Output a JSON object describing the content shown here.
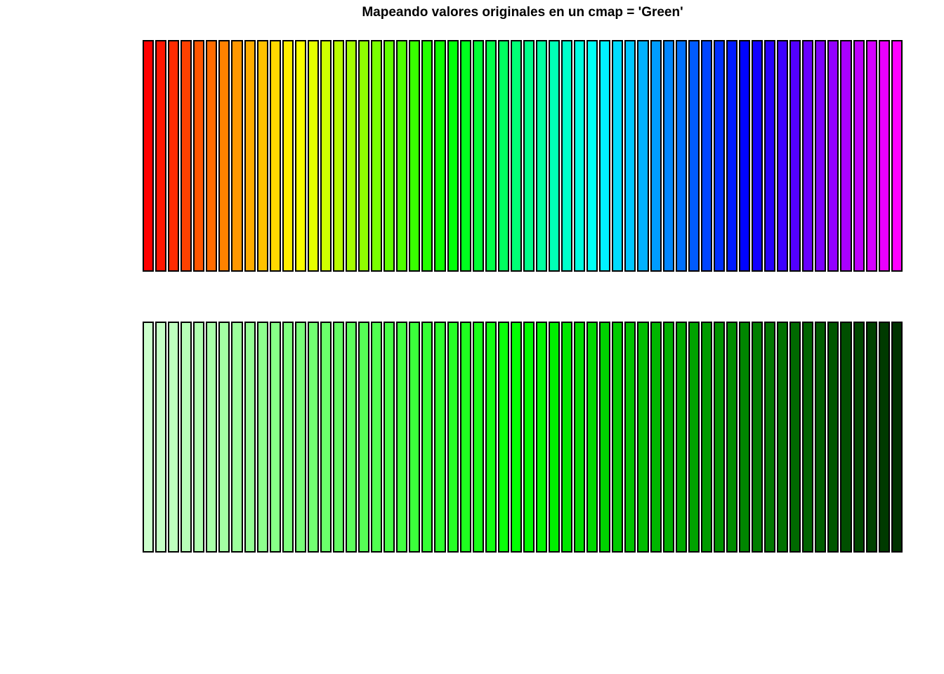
{
  "page": {
    "background_color": "#FFFFFF",
    "border_color": "#000000"
  },
  "title": "Mapeando valores originales en un cmap = 'Green'",
  "chart_data": [
    {
      "id": "rainbow-colorbar",
      "type": "bar",
      "title": "Mapeando valores originales en un cmap = 'Green'",
      "subtitle": "",
      "n_bars": 60,
      "uniform_height": true,
      "bar_value": 1,
      "axes_visible": false,
      "legend": "none",
      "colormap_description": "rainbow ramp, hue 0 deg (red) to 300 deg (magenta), full saturation",
      "bar_border_color": "#000000",
      "colors": [
        "#FF0000",
        "#FF1600",
        "#FF2B00",
        "#FF4100",
        "#FF5600",
        "#FF6C00",
        "#FF8200",
        "#FF9700",
        "#FFAD00",
        "#FFC200",
        "#FFD800",
        "#FFEE00",
        "#FBFF00",
        "#E5FF00",
        "#CFFF00",
        "#BAFF00",
        "#A4FF00",
        "#8FFF00",
        "#79FF00",
        "#63FF00",
        "#4EFF00",
        "#38FF00",
        "#23FF00",
        "#0DFF00",
        "#00FF09",
        "#00FF1E",
        "#00FF34",
        "#00FF49",
        "#00FF5F",
        "#00FF75",
        "#00FF8A",
        "#00FFA0",
        "#00FFB6",
        "#00FFCB",
        "#00FFE1",
        "#00FFF6",
        "#00F2FF",
        "#00DCFF",
        "#00C7FF",
        "#00B1FF",
        "#009CFF",
        "#0086FF",
        "#0070FF",
        "#005BFF",
        "#0045FF",
        "#0030FF",
        "#001AFF",
        "#0004FF",
        "#1100FF",
        "#2700FF",
        "#3D00FF",
        "#5200FF",
        "#6800FF",
        "#7D00FF",
        "#9300FF",
        "#A900FF",
        "#BE00FF",
        "#D400FF",
        "#E900FF",
        "#FF00FF"
      ]
    },
    {
      "id": "green-colorbar",
      "type": "bar",
      "title": "",
      "subtitle": "",
      "n_bars": 60,
      "uniform_height": true,
      "bar_value": 1,
      "axes_visible": false,
      "legend": "none",
      "colormap_description": "green ramp, light #CCFFCC to dark #003300, hue 120 deg constant",
      "bar_border_color": "#000000",
      "colors": [
        "#CCFFCC",
        "#C5FFC5",
        "#BEFFBE",
        "#B7FFB7",
        "#B0FFB0",
        "#A9FFA9",
        "#A3FFA3",
        "#9CFF9C",
        "#95FF95",
        "#8EFF8E",
        "#87FF87",
        "#80FF80",
        "#79FF79",
        "#72FF72",
        "#6BFF6B",
        "#64FF64",
        "#5DFF5D",
        "#56FF56",
        "#50FF50",
        "#49FF49",
        "#42FF42",
        "#3BFF3B",
        "#34FF34",
        "#2DFF2D",
        "#26FF26",
        "#1FFF1F",
        "#18FF18",
        "#11FF11",
        "#0AFF0A",
        "#03FF03",
        "#00FC00",
        "#00F500",
        "#00EE00",
        "#00E700",
        "#00E000",
        "#00D900",
        "#00D200",
        "#00CB00",
        "#00C400",
        "#00BD00",
        "#00B600",
        "#00B000",
        "#00A900",
        "#00A200",
        "#009B00",
        "#009400",
        "#008D00",
        "#008600",
        "#007F00",
        "#007800",
        "#007100",
        "#006A00",
        "#006300",
        "#005C00",
        "#005600",
        "#004F00",
        "#004800",
        "#004100",
        "#003A00",
        "#003300"
      ]
    }
  ]
}
